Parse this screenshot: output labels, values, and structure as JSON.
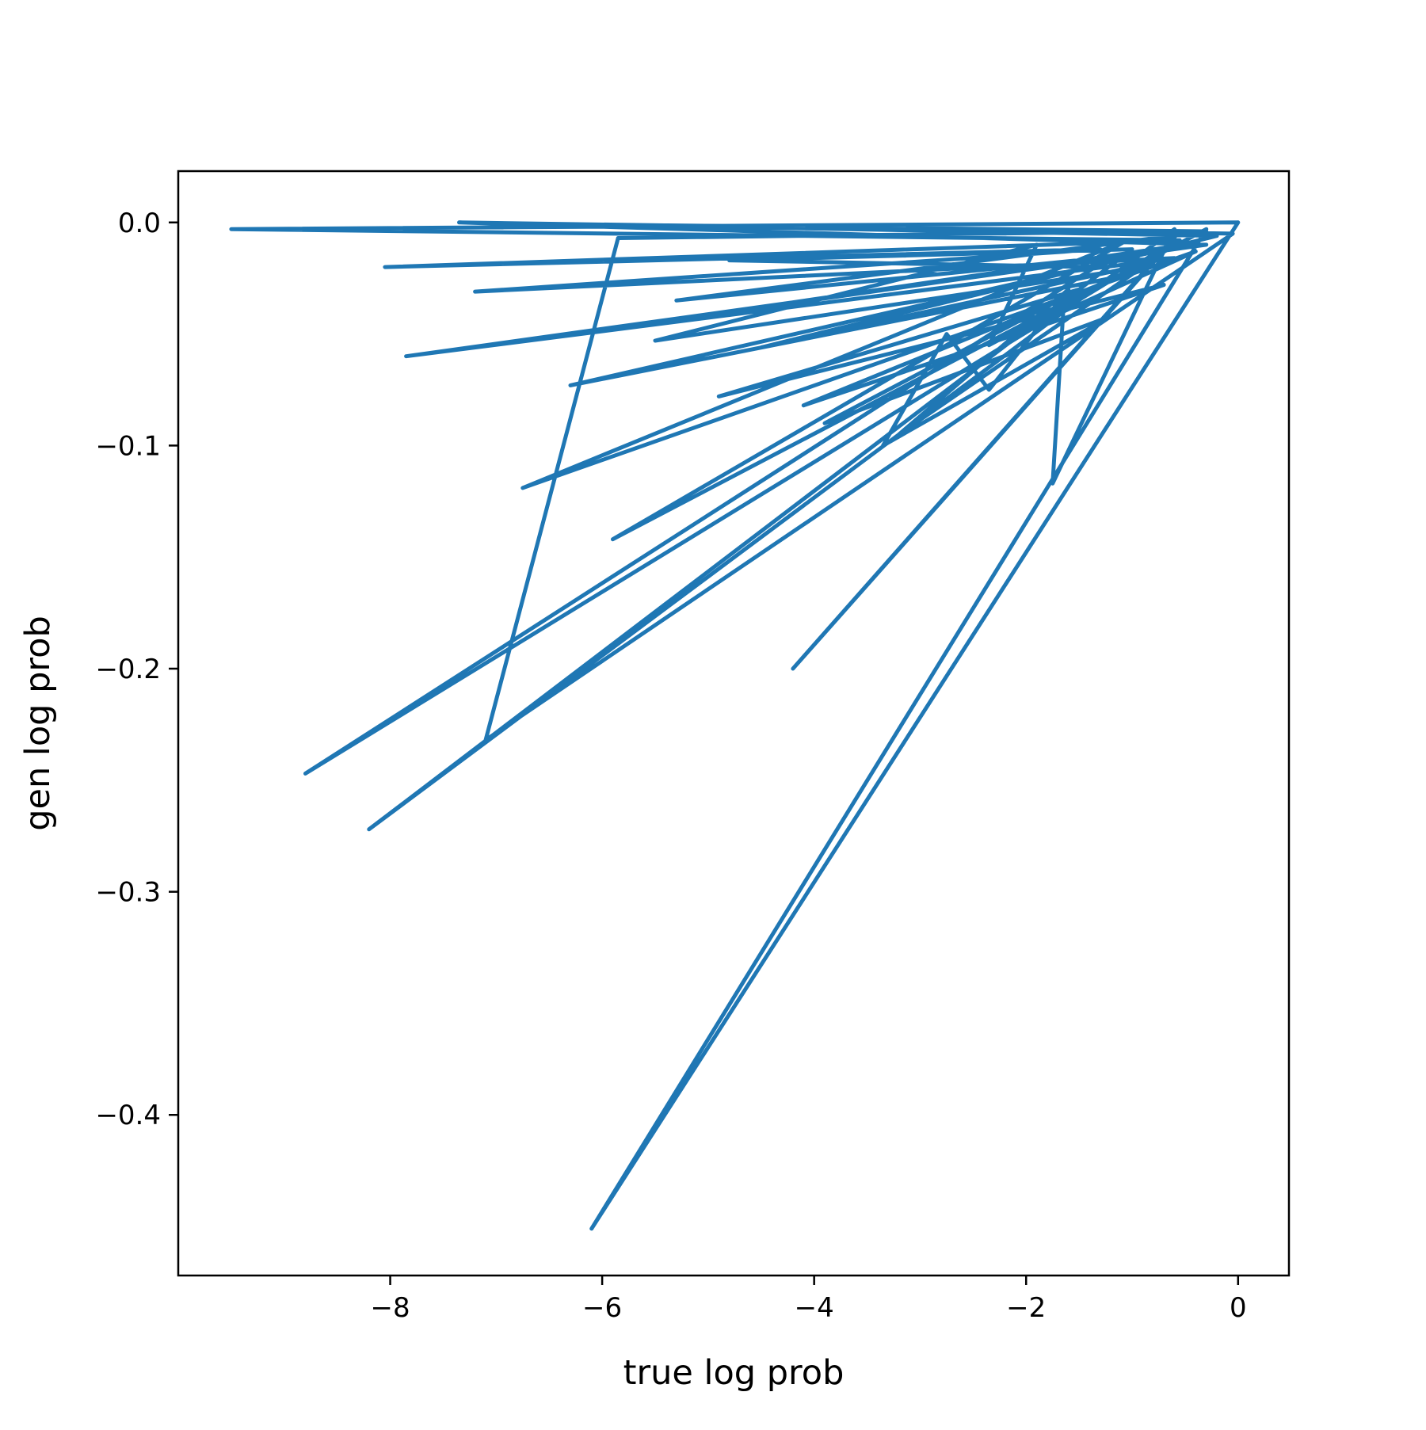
{
  "chart_data": {
    "type": "line",
    "title": "",
    "xlabel": "true log prob",
    "ylabel": "gen log prob",
    "xlim": [
      -10.0,
      0.48
    ],
    "ylim": [
      -0.472,
      0.023
    ],
    "xticks": [
      -8,
      -6,
      -4,
      -2,
      0
    ],
    "xtick_labels": [
      "−8",
      "−6",
      "−4",
      "−2",
      "0"
    ],
    "yticks": [
      0.0,
      -0.1,
      -0.2,
      -0.3,
      -0.4
    ],
    "ytick_labels": [
      "0.0",
      "−0.1",
      "−0.2",
      "−0.3",
      "−0.4"
    ],
    "grid": false,
    "legend": false,
    "series": [
      {
        "color": "#1f77b4",
        "x": [
          0,
          -9.5,
          -0.55,
          -8.05,
          -1.3,
          -7.2,
          -0.6,
          -7.85,
          -0.3,
          -7.35,
          -0.05,
          -7.1,
          -5.85,
          -0.55,
          -4.2,
          -0.65,
          -8.8,
          -1.35,
          -4.8,
          -1.0,
          -8.2,
          -0.6,
          -1.75,
          -1.65,
          -0.4,
          -6.75,
          -1.05,
          -5.9,
          -1.2,
          -6.3,
          -0.5,
          -5.8,
          -1.1,
          -5.3,
          -0.3,
          -6.0,
          -0.2,
          -4.5,
          -0.8,
          -4.1,
          -0.7,
          -4.9,
          -1.5,
          -3.9,
          -1.2,
          -3.35,
          -2.75,
          -2.35,
          -1.6,
          -3.2,
          -0.9,
          -5.5,
          -1.9,
          -2.35,
          -0.3,
          -6.1,
          0
        ],
        "y": [
          0,
          -0.003,
          -0.008,
          -0.02,
          -0.012,
          -0.031,
          -0.016,
          -0.06,
          -0.01,
          0.0,
          -0.005,
          -0.232,
          -0.007,
          -0.004,
          -0.2,
          -0.01,
          -0.247,
          -0.02,
          -0.017,
          -0.012,
          -0.272,
          -0.003,
          -0.117,
          -0.04,
          -0.013,
          -0.119,
          -0.008,
          -0.142,
          -0.025,
          -0.073,
          -0.01,
          -0.047,
          -0.015,
          -0.035,
          -0.004,
          -0.001,
          -0.006,
          -0.056,
          -0.018,
          -0.082,
          -0.028,
          -0.078,
          -0.03,
          -0.09,
          -0.042,
          -0.1,
          -0.05,
          -0.075,
          -0.03,
          -0.095,
          -0.02,
          -0.053,
          -0.01,
          -0.055,
          -0.003,
          -0.451,
          0
        ]
      }
    ]
  }
}
